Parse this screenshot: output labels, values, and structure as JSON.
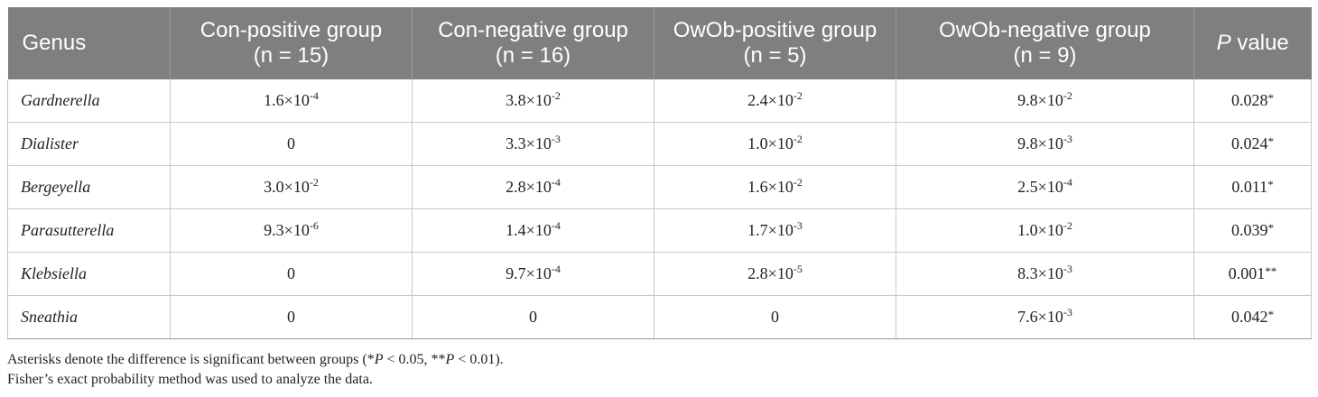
{
  "table": {
    "columns": [
      {
        "line1": "Genus",
        "line2": ""
      },
      {
        "line1": "Con-positive group",
        "line2": "(n = 15)"
      },
      {
        "line1": "Con-negative group",
        "line2": "(n = 16)"
      },
      {
        "line1": "OwOb-positive group",
        "line2": "(n = 5)"
      },
      {
        "line1": "OwOb-negative group",
        "line2": "(n = 9)"
      },
      {
        "line1_italic": "P",
        "line1": " value",
        "line2": ""
      }
    ],
    "rows": [
      {
        "genus": "Gardnerella",
        "values": [
          {
            "mant": "1.6",
            "times": "×10",
            "exp": "-4"
          },
          {
            "mant": "3.8",
            "times": "×10",
            "exp": "-2"
          },
          {
            "mant": "2.4",
            "times": "×10",
            "exp": "-2"
          },
          {
            "mant": "9.8",
            "times": "×10",
            "exp": "-2"
          }
        ],
        "p": "0.028",
        "stars": "*"
      },
      {
        "genus": "Dialister",
        "values": [
          {
            "mant": "0",
            "times": "",
            "exp": ""
          },
          {
            "mant": "3.3",
            "times": "×10",
            "exp": "-3"
          },
          {
            "mant": "1.0",
            "times": "×10",
            "exp": "-2"
          },
          {
            "mant": "9.8",
            "times": "×10",
            "exp": "-3"
          }
        ],
        "p": "0.024",
        "stars": "*"
      },
      {
        "genus": "Bergeyella",
        "values": [
          {
            "mant": "3.0",
            "times": "×10",
            "exp": "-2"
          },
          {
            "mant": "2.8",
            "times": "×10",
            "exp": "-4"
          },
          {
            "mant": "1.6",
            "times": "×10",
            "exp": "-2"
          },
          {
            "mant": "2.5",
            "times": "×10",
            "exp": "-4"
          }
        ],
        "p": "0.011",
        "stars": "*"
      },
      {
        "genus": "Parasutterella",
        "values": [
          {
            "mant": "9.3",
            "times": "×10",
            "exp": "-6"
          },
          {
            "mant": "1.4",
            "times": "×10",
            "exp": "-4"
          },
          {
            "mant": "1.7",
            "times": "×10",
            "exp": "-3"
          },
          {
            "mant": "1.0",
            "times": "×10",
            "exp": "-2"
          }
        ],
        "p": "0.039",
        "stars": "*"
      },
      {
        "genus": "Klebsiella",
        "values": [
          {
            "mant": "0",
            "times": "",
            "exp": ""
          },
          {
            "mant": "9.7",
            "times": "×10",
            "exp": "-4"
          },
          {
            "mant": "2.8",
            "times": "×10",
            "exp": "-5"
          },
          {
            "mant": "8.3",
            "times": "×10",
            "exp": "-3"
          }
        ],
        "p": "0.001",
        "stars": "**"
      },
      {
        "genus": "Sneathia",
        "values": [
          {
            "mant": "0",
            "times": "",
            "exp": ""
          },
          {
            "mant": "0",
            "times": "",
            "exp": ""
          },
          {
            "mant": "0",
            "times": "",
            "exp": ""
          },
          {
            "mant": "7.6",
            "times": "×10",
            "exp": "-3"
          }
        ],
        "p": "0.042",
        "stars": "*"
      }
    ]
  },
  "footnotes": {
    "line1": {
      "a": "Asterisks denote the difference is significant between groups (*",
      "b": "P",
      "c": " < 0.05, **",
      "d": "P",
      "e": " < 0.01)."
    },
    "line2": "Fisher’s exact probability method was used to analyze the data."
  },
  "colors": {
    "header_bg": "#7f7f7f",
    "header_text": "#ffffff",
    "grid": "#c8c8c8"
  }
}
